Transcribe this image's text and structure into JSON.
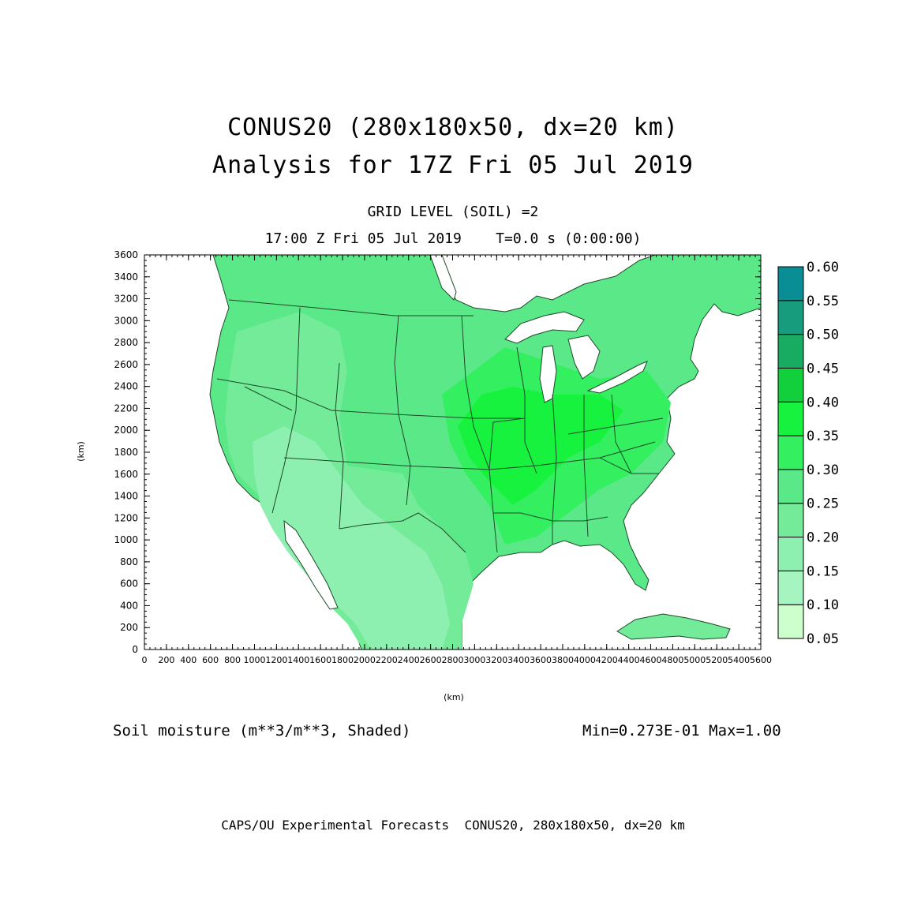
{
  "titles": {
    "line1": "CONUS20 (280x180x50, dx=20 km)",
    "line2": "Analysis for 17Z Fri 05 Jul 2019",
    "level": "GRID LEVEL (SOIL) =2",
    "time": "17:00 Z Fri 05 Jul 2019    T=0.0 s (0:00:00)"
  },
  "axes": {
    "x_label": "(km)",
    "y_label": "(km)",
    "x_ticks": [
      "0",
      "200",
      "400",
      "600",
      "800",
      "1000",
      "1200",
      "1400",
      "1600",
      "1800",
      "2000",
      "2200",
      "2400",
      "2600",
      "2800",
      "3000",
      "3200",
      "3400",
      "3600",
      "3800",
      "4000",
      "4200",
      "4400",
      "4600",
      "4800",
      "5000",
      "5200",
      "5400",
      "5600"
    ],
    "y_ticks": [
      "0",
      "200",
      "400",
      "600",
      "800",
      "1000",
      "1200",
      "1400",
      "1600",
      "1800",
      "2000",
      "2200",
      "2400",
      "2600",
      "2800",
      "3000",
      "3200",
      "3400",
      "3600"
    ],
    "x_range": [
      0,
      5600
    ],
    "y_range": [
      0,
      3600
    ]
  },
  "colorbar": {
    "levels": [
      "0.05",
      "0.10",
      "0.15",
      "0.20",
      "0.25",
      "0.30",
      "0.35",
      "0.40",
      "0.45",
      "0.50",
      "0.55",
      "0.60"
    ],
    "colors": [
      "#ccffcc",
      "#a6f5c0",
      "#8ef0b0",
      "#73eb98",
      "#5ae888",
      "#34f060",
      "#16f23e",
      "#12cf3c",
      "#18ab62",
      "#179c7e",
      "#0a8e95",
      "#1166ee"
    ]
  },
  "field": {
    "name": "Soil moisture (m**3/m**3, Shaded)",
    "minmax": "Min=0.273E-01 Max=1.00"
  },
  "footer": "CAPS/OU Experimental Forecasts  CONUS20, 280x180x50, dx=20 km"
}
